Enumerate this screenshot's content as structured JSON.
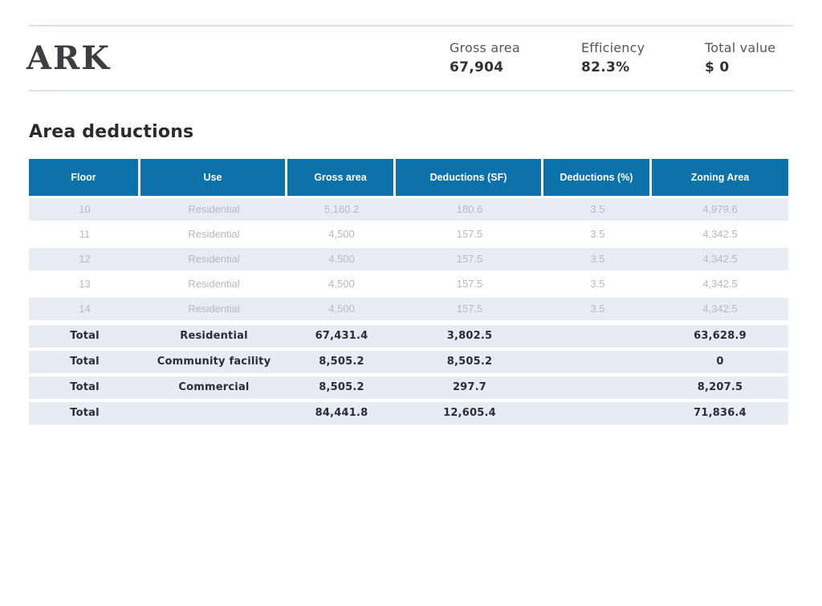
{
  "header": {
    "logo": "ARK",
    "stats": [
      {
        "label": "Gross area",
        "value": "67,904"
      },
      {
        "label": "Efficiency",
        "value": "82.3%"
      },
      {
        "label": "Total value",
        "value": "$ 0"
      }
    ]
  },
  "section": {
    "title": "Area deductions"
  },
  "table": {
    "columns": [
      "Floor",
      "Use",
      "Gross area",
      "Deductions (SF)",
      "Deductions (%)",
      "Zoning Area"
    ],
    "rows": [
      [
        "10",
        "Residential",
        "5,160.2",
        "180.6",
        "3.5",
        "4,979.6"
      ],
      [
        "11",
        "Residential",
        "4,500",
        "157.5",
        "3.5",
        "4,342.5"
      ],
      [
        "12",
        "Residential",
        "4,500",
        "157.5",
        "3.5",
        "4,342.5"
      ],
      [
        "13",
        "Residential",
        "4,500",
        "157.5",
        "3.5",
        "4,342.5"
      ],
      [
        "14",
        "Residential",
        "4,500",
        "157.5",
        "3.5",
        "4,342.5"
      ]
    ],
    "totals": [
      [
        "Total",
        "Residential",
        "67,431.4",
        "3,802.5",
        "",
        "63,628.9"
      ],
      [
        "Total",
        "Community facility",
        "8,505.2",
        "8,505.2",
        "",
        "0"
      ],
      [
        "Total",
        "Commercial",
        "8,505.2",
        "297.7",
        "",
        "8,207.5"
      ],
      [
        "Total",
        "",
        "84,441.8",
        "12,605.4",
        "",
        "71,836.4"
      ]
    ]
  },
  "colors": {
    "accent_blue": "#0e72aa",
    "stripe_row_bg": "#e9edf3",
    "total_row_bg": "#e7ebf2",
    "muted_text": "#b4b8c0",
    "dark_text": "#2c2c33",
    "divider": "#d9e1e7"
  }
}
